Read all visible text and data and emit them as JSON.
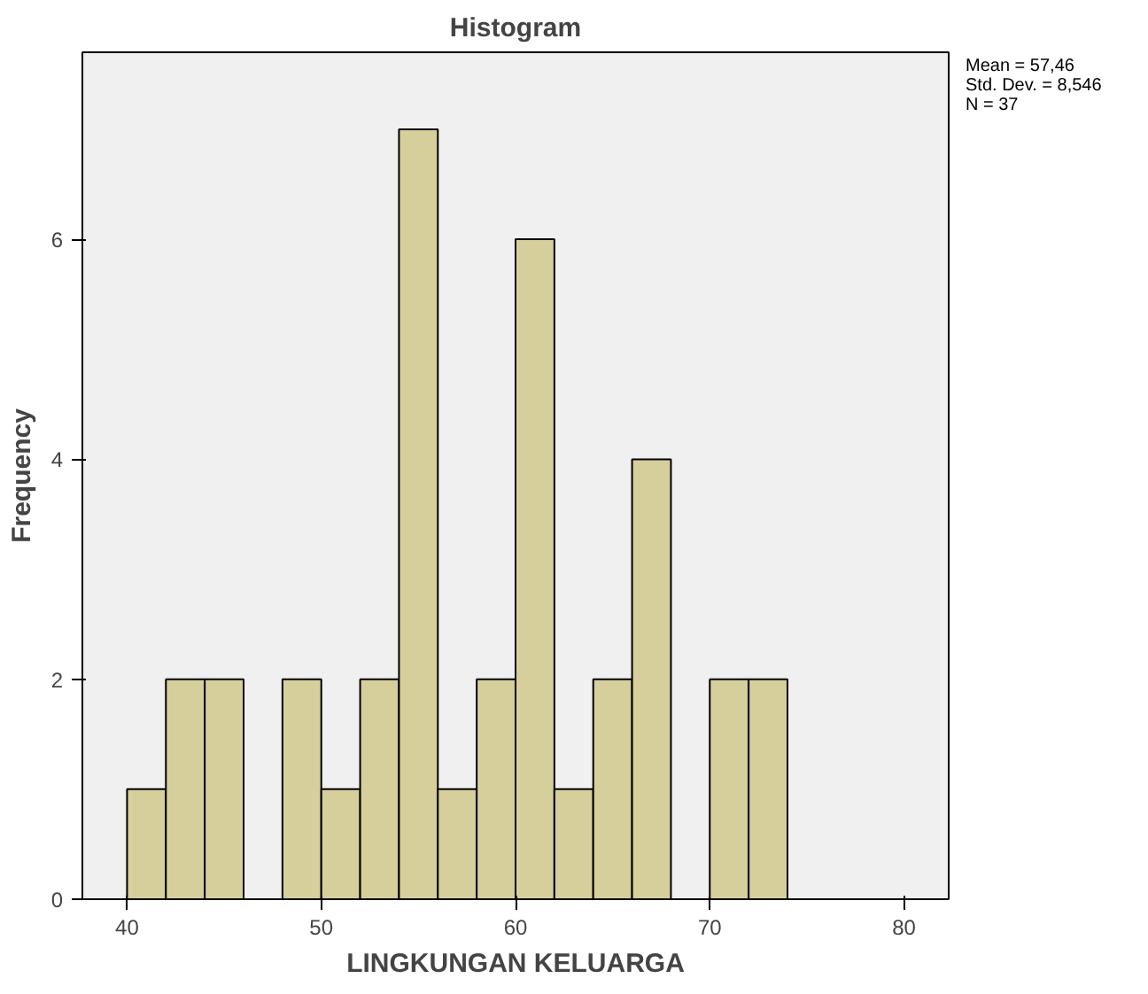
{
  "chart_data": {
    "type": "histogram",
    "title": "Histogram",
    "xlabel": "LINGKUNGAN KELUARGA",
    "ylabel": "Frequency",
    "bins": [
      40,
      42,
      44,
      46,
      48,
      50,
      52,
      54,
      56,
      58,
      60,
      62,
      64,
      66,
      68,
      70,
      72,
      74
    ],
    "values": [
      1,
      2,
      2,
      0,
      2,
      1,
      2,
      7,
      1,
      2,
      6,
      1,
      2,
      4,
      0,
      2,
      2
    ],
    "color": "#d6cf9c",
    "xlim": [
      37.7,
      82.3
    ],
    "ylim": [
      0,
      7.7
    ],
    "xticks": [
      40,
      50,
      60,
      70,
      80
    ],
    "yticks": [
      0,
      2,
      4,
      6
    ],
    "grid": false,
    "annotations": [
      "Mean = 57,46",
      "Std. Dev. = 8,546",
      "N = 37"
    ]
  }
}
